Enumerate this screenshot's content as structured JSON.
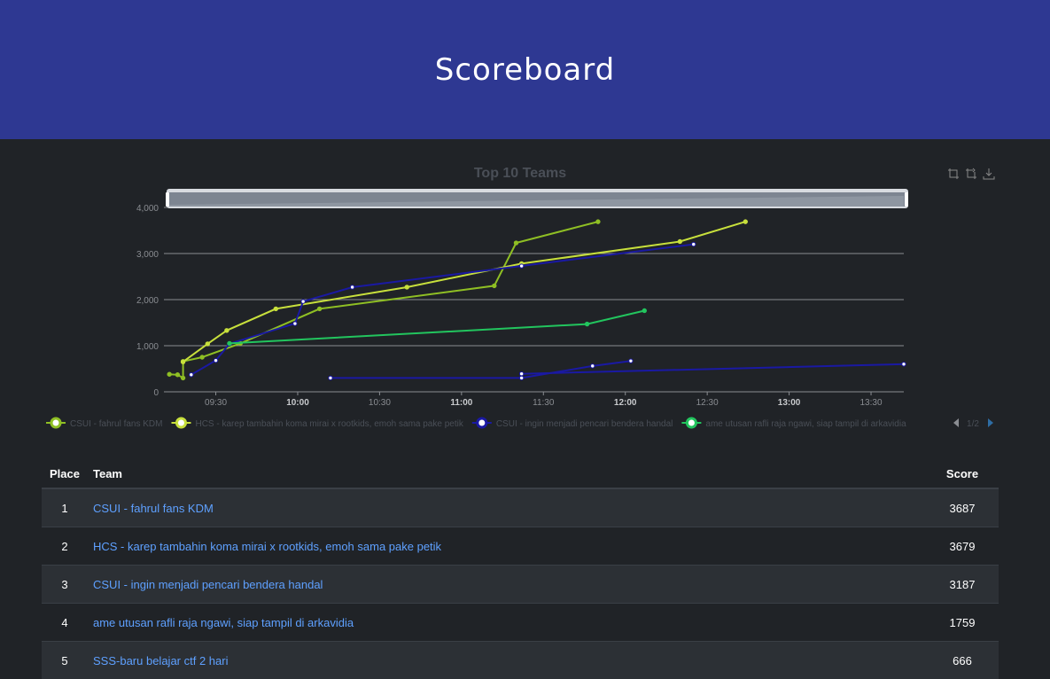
{
  "header": {
    "title": "Scoreboard"
  },
  "chart_data": {
    "type": "line",
    "title": "Top 10 Teams",
    "x_ticks": [
      "09:30",
      "10:00",
      "10:30",
      "11:00",
      "11:30",
      "12:00",
      "12:30",
      "13:00",
      "13:30"
    ],
    "x_range": [
      "09:11",
      "13:42"
    ],
    "y_ticks": [
      "0",
      "1,000",
      "2,000",
      "3,000",
      "4,000"
    ],
    "ylim": [
      0,
      4000
    ],
    "grid": true,
    "legend_position": "bottom",
    "legend_page": "1/2",
    "series": [
      {
        "name": "CSUI - fahrul fans KDM",
        "color": "#8fbf24",
        "points": [
          [
            "09:13",
            380
          ],
          [
            "09:16",
            370
          ],
          [
            "09:18",
            300
          ],
          [
            "09:18",
            660
          ],
          [
            "09:25",
            750
          ],
          [
            "09:39",
            1050
          ],
          [
            "10:08",
            1800
          ],
          [
            "11:12",
            2300
          ],
          [
            "11:20",
            3230
          ],
          [
            "11:50",
            3690
          ]
        ]
      },
      {
        "name": "HCS - karep tambahin koma mirai x rootkids, emoh sama pake petik",
        "color": "#c8e03c",
        "points": [
          [
            "09:18",
            650
          ],
          [
            "09:27",
            1040
          ],
          [
            "09:34",
            1330
          ],
          [
            "09:52",
            1800
          ],
          [
            "10:40",
            2270
          ],
          [
            "11:22",
            2780
          ],
          [
            "12:20",
            3260
          ],
          [
            "12:44",
            3690
          ]
        ]
      },
      {
        "name": "CSUI - ingin menjadi pencari bendera handal",
        "color": "#1a19a3",
        "points": [
          [
            "09:21",
            370
          ],
          [
            "09:30",
            680
          ],
          [
            "09:35",
            1040
          ],
          [
            "09:59",
            1480
          ],
          [
            "10:02",
            1960
          ],
          [
            "10:20",
            2270
          ],
          [
            "11:22",
            2730
          ],
          [
            "12:25",
            3200
          ]
        ]
      },
      {
        "name": "ame utusan rafli raja ngawi, siap tampil di arkavidia",
        "color": "#22c55e",
        "points": [
          [
            "09:35",
            1050
          ],
          [
            "11:46",
            1470
          ],
          [
            "12:07",
            1760
          ]
        ]
      },
      {
        "name": "SSS-baru belajar ctf 2 hari",
        "color": "#1a19a3",
        "points": [
          [
            "10:12",
            300
          ],
          [
            "11:22",
            300
          ],
          [
            "11:48",
            560
          ],
          [
            "12:02",
            670
          ]
        ]
      },
      {
        "name": "",
        "color": "#1a19a3",
        "points": [
          [
            "11:22",
            390
          ],
          [
            "13:42",
            600
          ]
        ]
      }
    ]
  },
  "table": {
    "headers": {
      "place": "Place",
      "team": "Team",
      "score": "Score"
    },
    "rows": [
      {
        "place": "1",
        "team": "CSUI - fahrul fans KDM",
        "score": "3687"
      },
      {
        "place": "2",
        "team": "HCS - karep tambahin koma mirai x rootkids, emoh sama pake petik",
        "score": "3679"
      },
      {
        "place": "3",
        "team": "CSUI - ingin menjadi pencari bendera handal",
        "score": "3187"
      },
      {
        "place": "4",
        "team": "ame utusan rafli raja ngawi, siap tampil di arkavidia",
        "score": "1759"
      },
      {
        "place": "5",
        "team": "SSS-baru belajar ctf 2 hari",
        "score": "666"
      }
    ]
  }
}
